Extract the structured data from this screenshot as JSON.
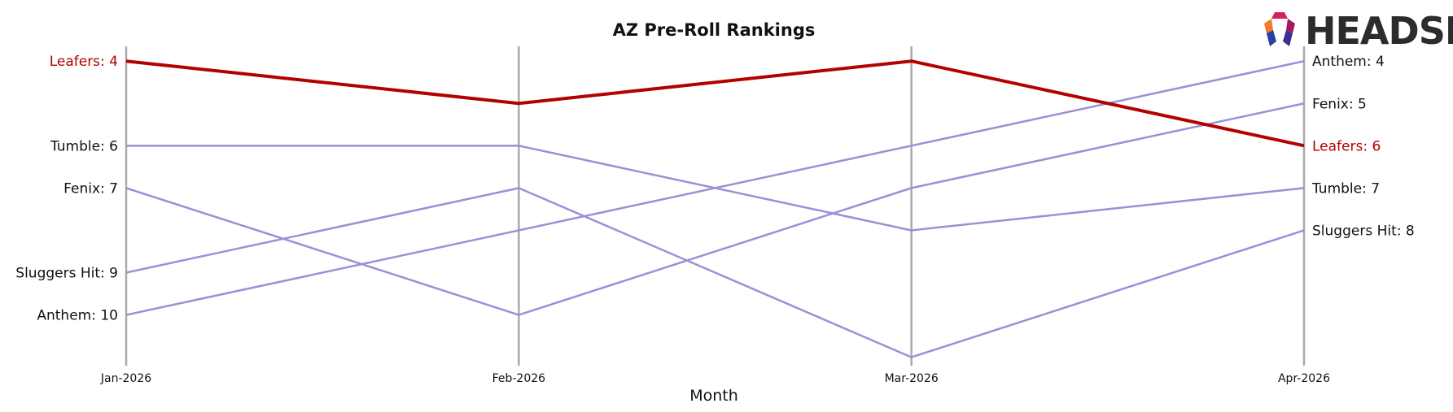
{
  "chart_data": {
    "type": "line",
    "title": "AZ Pre-Roll Rankings",
    "xlabel": "Month",
    "ylabel": "",
    "categories": [
      "Jan-2026",
      "Feb-2026",
      "Mar-2026",
      "Apr-2026"
    ],
    "y_inverted": true,
    "ylim": [
      3.65,
      11.2
    ],
    "highlight_color": "#b30000",
    "series_color": "#9a90d6",
    "axis_color": "#aaaaaa",
    "series": [
      {
        "name": "Leafers",
        "values": [
          4,
          5,
          4,
          6
        ],
        "highlight": true,
        "start_label": "Leafers: 4",
        "end_label": "Leafers: 6"
      },
      {
        "name": "Tumble",
        "values": [
          6,
          6,
          8,
          7
        ],
        "start_label": "Tumble: 6",
        "end_label": "Tumble: 7"
      },
      {
        "name": "Fenix",
        "values": [
          7,
          10,
          7,
          5
        ],
        "start_label": "Fenix: 7",
        "end_label": "Fenix: 5"
      },
      {
        "name": "Sluggers Hit",
        "values": [
          9,
          7,
          11,
          8
        ],
        "start_label": "Sluggers Hit: 9",
        "end_label": "Sluggers Hit: 8"
      },
      {
        "name": "Anthem",
        "values": [
          10,
          8,
          6,
          4
        ],
        "start_label": "Anthem: 10",
        "end_label": "Anthem: 4"
      }
    ]
  },
  "logo": {
    "text": "HEADSET"
  }
}
